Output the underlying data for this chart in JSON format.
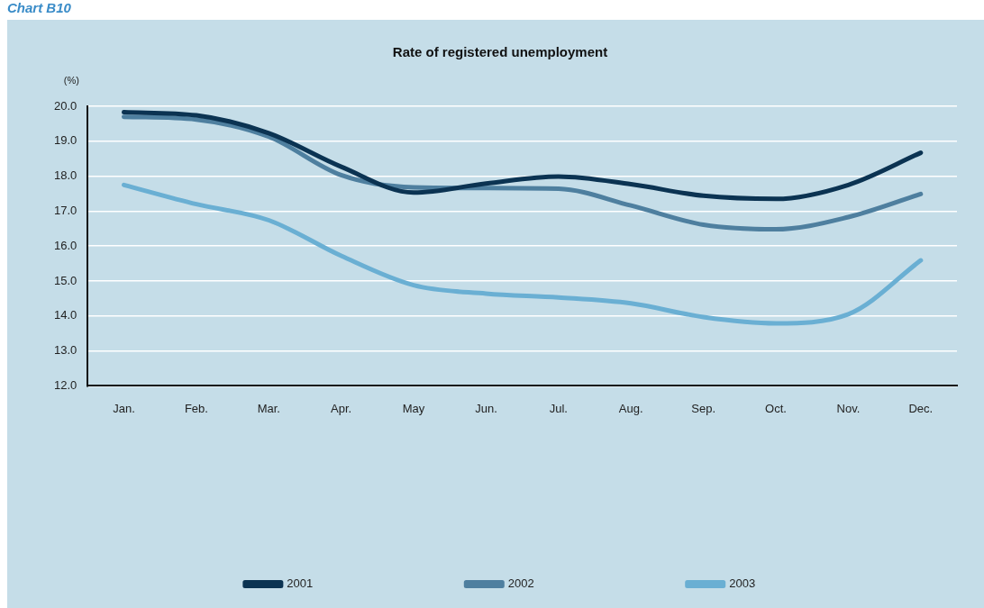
{
  "chart_data": {
    "type": "line",
    "title": "Rate of registered unemployment",
    "ylabel": "(%)",
    "annotations": [
      "Chart B10"
    ],
    "categories": [
      "Jan.",
      "Feb.",
      "Mar.",
      "Apr.",
      "May",
      "Jun.",
      "Jul.",
      "Aug.",
      "Sep.",
      "Oct.",
      "Nov.",
      "Dec."
    ],
    "series": [
      {
        "name": "2001",
        "color": "#0b3352",
        "values": [
          19.83,
          19.74,
          19.23,
          18.27,
          17.53,
          17.79,
          17.99,
          17.77,
          17.44,
          17.35,
          17.75,
          18.67
        ]
      },
      {
        "name": "2002",
        "color": "#4e7f9f",
        "values": [
          19.7,
          19.62,
          19.13,
          18.03,
          17.68,
          17.66,
          17.64,
          17.16,
          16.61,
          16.48,
          16.83,
          17.49
        ]
      },
      {
        "name": "2003",
        "color": "#6aafd3",
        "values": [
          17.75,
          17.2,
          16.74,
          15.72,
          14.88,
          14.64,
          14.53,
          14.36,
          13.97,
          13.79,
          14.05,
          15.59
        ]
      }
    ],
    "ylim": [
      12,
      20
    ],
    "yticks": [
      {
        "value": 12,
        "label": "12.0"
      },
      {
        "value": 13,
        "label": "13.0"
      },
      {
        "value": 14,
        "label": "14.0"
      },
      {
        "value": 15,
        "label": "15.0"
      },
      {
        "value": 16,
        "label": "16.0"
      },
      {
        "value": 17,
        "label": "17.0"
      },
      {
        "value": 18,
        "label": "18.0"
      },
      {
        "value": 19,
        "label": "19.0"
      },
      {
        "value": 20,
        "label": "20.0"
      }
    ],
    "grid": "y",
    "legend": "bottom",
    "marker": "none",
    "line_style": "solid"
  }
}
